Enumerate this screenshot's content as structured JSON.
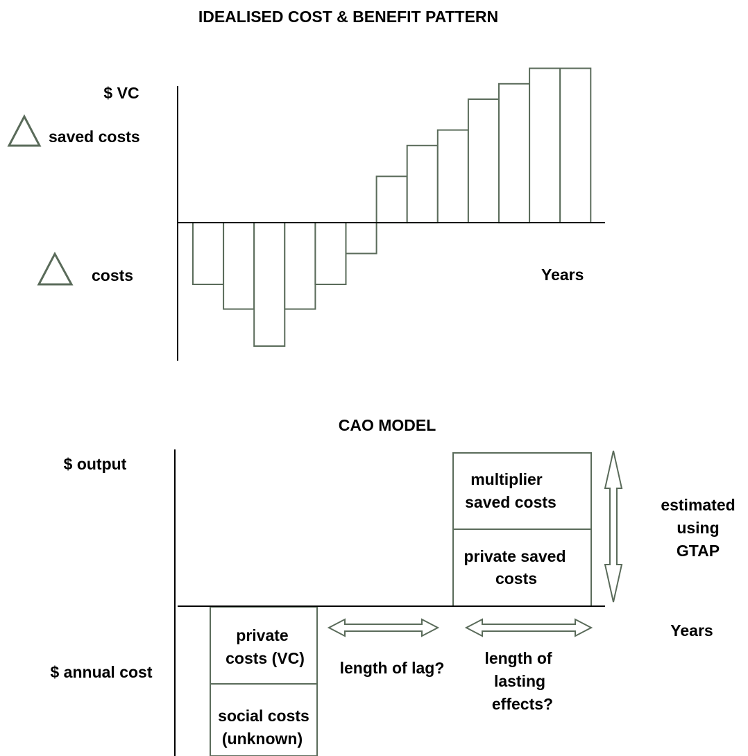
{
  "top": {
    "title": "IDEALISED COST & BENEFIT PATTERN",
    "y_top_label": "$ VC",
    "saved_costs_label": "saved costs",
    "costs_label": "costs",
    "x_label": "Years"
  },
  "bottom": {
    "title": "CAO MODEL",
    "y_top_label": "$ output",
    "y_bottom_label": "$ annual cost",
    "x_label": "Years",
    "private_costs": [
      "private",
      "costs (VC)"
    ],
    "social_costs": [
      "social costs",
      "(unknown)"
    ],
    "lag_label": "length of lag?",
    "lasting_label": [
      "length of",
      "lasting",
      "effects?"
    ],
    "multiplier_label": [
      "multiplier",
      "saved costs"
    ],
    "private_saved_label": [
      "private saved",
      "costs"
    ],
    "gtap_label": [
      "estimated",
      "using",
      "GTAP"
    ]
  },
  "colors": {
    "outline": "#5a6b5a",
    "axis": "#000000",
    "background": "#ffffff"
  },
  "chart_data": {
    "type": "bar",
    "title": "IDEALISED COST & BENEFIT PATTERN",
    "xlabel": "Years",
    "ylabel": "$ VC",
    "values": [
      -2,
      -2.8,
      -4,
      -2.8,
      -2,
      -1,
      1.5,
      2.5,
      3,
      4,
      4.5,
      5,
      5
    ]
  }
}
